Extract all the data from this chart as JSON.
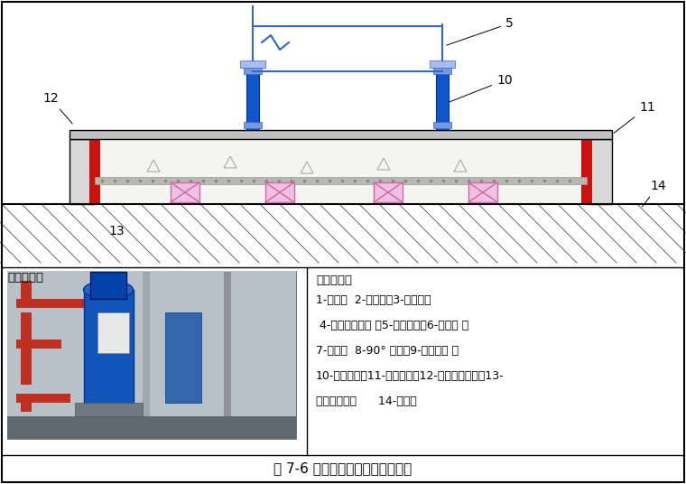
{
  "title": "图 7-6 立式水泵与管路连接示意图",
  "bg_color": "#ffffff",
  "legend_title": "符号说明：",
  "legend_lines": [
    "1-闸阀；  2-除污器；3-软接头；",
    " 4-压力表连旋塞 ；5-立式水泵；6-止回阀 ；",
    "7-支架；  8-90° 弯头；9-弹性吊架 ；",
    "10-浮动底座；11-隔离夹板；12-外部等级夹板；13-",
    "隔振橡胶垫；      14-地面；"
  ],
  "case_label": "实施案例：",
  "label_12": "12",
  "label_5": "5",
  "label_10": "10",
  "label_11": "11",
  "label_13": "13",
  "label_14": "14"
}
